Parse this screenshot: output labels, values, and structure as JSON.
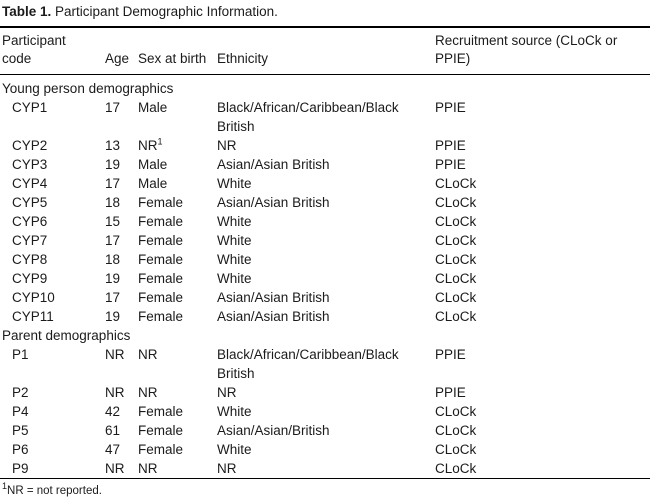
{
  "table": {
    "title_label": "Table 1.",
    "title_text": "Participant Demographic Information.",
    "columns": [
      "Participant code",
      "Age",
      "Sex at birth",
      "Ethnicity",
      "Recruitment source (CLoCk or PPIE)"
    ],
    "sections": [
      {
        "label": "Young person demographics",
        "rows": [
          {
            "code": "CYP1",
            "age": "17",
            "sex": "Male",
            "ethnicity": "Black/African/Caribbean/Black British",
            "source": "PPIE"
          },
          {
            "code": "CYP2",
            "age": "13",
            "sex": "NR",
            "sex_footnote_marker": "1",
            "ethnicity": "NR",
            "source": "PPIE"
          },
          {
            "code": "CYP3",
            "age": "19",
            "sex": "Male",
            "ethnicity": "Asian/Asian British",
            "source": "PPIE"
          },
          {
            "code": "CYP4",
            "age": "17",
            "sex": "Male",
            "ethnicity": "White",
            "source": "CLoCk"
          },
          {
            "code": "CYP5",
            "age": "18",
            "sex": "Female",
            "ethnicity": "Asian/Asian British",
            "source": "CLoCk"
          },
          {
            "code": "CYP6",
            "age": "15",
            "sex": "Female",
            "ethnicity": "White",
            "source": "CLoCk"
          },
          {
            "code": "CYP7",
            "age": "17",
            "sex": "Female",
            "ethnicity": "White",
            "source": "CLoCk"
          },
          {
            "code": "CYP8",
            "age": "18",
            "sex": "Female",
            "ethnicity": "White",
            "source": "CLoCk"
          },
          {
            "code": "CYP9",
            "age": "19",
            "sex": "Female",
            "ethnicity": "White",
            "source": "CLoCk"
          },
          {
            "code": "CYP10",
            "age": "17",
            "sex": "Female",
            "ethnicity": "Asian/Asian British",
            "source": "CLoCk"
          },
          {
            "code": "CYP11",
            "age": "19",
            "sex": "Female",
            "ethnicity": "Asian/Asian British",
            "source": "CLoCk"
          }
        ]
      },
      {
        "label": "Parent demographics",
        "rows": [
          {
            "code": "P1",
            "age": "NR",
            "sex": "NR",
            "ethnicity": "Black/African/Caribbean/Black British",
            "source": "PPIE"
          },
          {
            "code": "P2",
            "age": "NR",
            "sex": "NR",
            "ethnicity": "NR",
            "source": "PPIE"
          },
          {
            "code": "P4",
            "age": "42",
            "sex": "Female",
            "ethnicity": "White",
            "source": "CLoCk"
          },
          {
            "code": "P5",
            "age": "61",
            "sex": "Female",
            "ethnicity": "Asian/Asian/British",
            "source": "CLoCk"
          },
          {
            "code": "P6",
            "age": "47",
            "sex": "Female",
            "ethnicity": "White",
            "source": "CLoCk"
          },
          {
            "code": "P9",
            "age": "NR",
            "sex": "NR",
            "ethnicity": "NR",
            "source": "CLoCk"
          }
        ]
      }
    ],
    "footnote_marker": "1",
    "footnote_text": "NR = not reported."
  }
}
